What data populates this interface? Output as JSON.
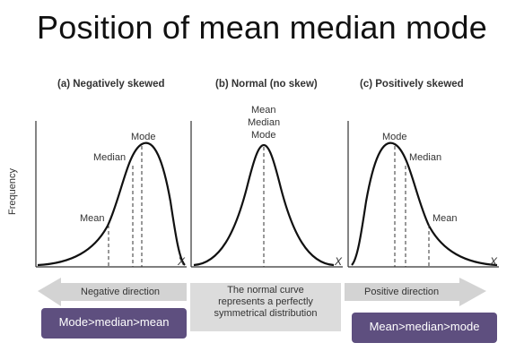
{
  "title": "Position of mean median mode",
  "y_axis_label": "Frequency",
  "panels": [
    {
      "title": "(a) Negatively skewed",
      "labels": {
        "mode": "Mode",
        "median": "Median",
        "mean": "Mean"
      },
      "x": "X"
    },
    {
      "title": "(b) Normal (no skew)",
      "labels": {
        "mean": "Mean",
        "median": "Median",
        "mode": "Mode"
      },
      "x": "X"
    },
    {
      "title": "(c) Positively skewed",
      "labels": {
        "mode": "Mode",
        "median": "Median",
        "mean": "Mean"
      },
      "x": "X"
    }
  ],
  "arrows": {
    "negative": "Negative direction",
    "positive": "Positive direction",
    "middle": [
      "The normal curve",
      "represents a perfectly",
      "symmetrical distribution"
    ]
  },
  "badges": {
    "left": "Mode>median>mean",
    "right": "Mean>median>mode"
  },
  "colors": {
    "badge": "#5e4f7f",
    "arrow": "#d0d0d0",
    "curve": "#111111"
  }
}
